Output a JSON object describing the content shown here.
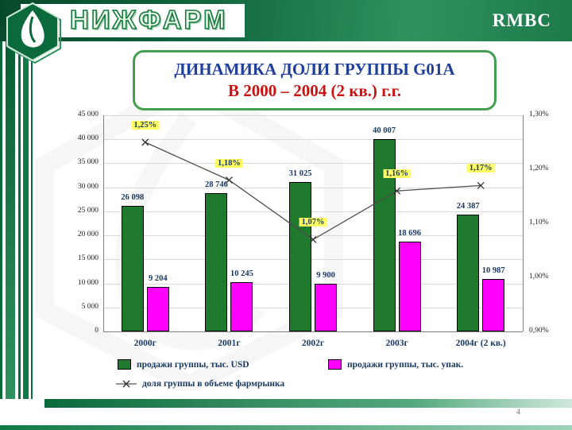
{
  "header": {
    "brand": "НИЖФАРМ",
    "right_text": "RMBC",
    "band_color": "#10663c"
  },
  "title": {
    "line1": "ДИНАМИКА ДОЛИ ГРУППЫ G01A",
    "line2": "В 2000 – 2004 (2 кв.) г.г.",
    "line1_color": "#1f3f99",
    "line2_color": "#cc1111"
  },
  "chart_data": {
    "type": "combo",
    "categories": [
      "2000г",
      "2001г",
      "2002г",
      "2003г",
      "2004г (2 кв.)"
    ],
    "series": [
      {
        "name": "продажи группы, тыс. USD",
        "type": "bar",
        "color": "#1f7a2d",
        "values": [
          26098,
          28746,
          31025,
          40007,
          24387
        ],
        "labels": [
          "26 098",
          "28 746",
          "31 025",
          "40 007",
          "24 387"
        ]
      },
      {
        "name": "продажи группы, тыс. упак.",
        "type": "bar",
        "color": "#ff00ff",
        "values": [
          9204,
          10245,
          9900,
          18696,
          10987
        ],
        "labels": [
          "9 204",
          "10 245",
          "9 900",
          "18 696",
          "10 987"
        ]
      },
      {
        "name": "доля группы в объеме фармрынка",
        "type": "line",
        "color": "#4d4d4d",
        "values": [
          1.25,
          1.18,
          1.07,
          1.16,
          1.17
        ],
        "labels": [
          "1,25%",
          "1,18%",
          "1,07%",
          "1,16%",
          "1,17%"
        ],
        "label_highlight": "#ffff63"
      }
    ],
    "left_axis": {
      "min": 0,
      "max": 45000,
      "step": 5000,
      "ticks": [
        "45 000",
        "40 000",
        "35 000",
        "30 000",
        "25 000",
        "20 000",
        "15 000",
        "10 000",
        "5 000",
        "0"
      ]
    },
    "right_axis": {
      "min": 0.9,
      "max": 1.3,
      "step": 0.1,
      "ticks": [
        "1,30%",
        "1,20%",
        "1,10%",
        "1,00%",
        "0,90%"
      ]
    },
    "grid": true,
    "legend_position": "bottom"
  },
  "footer": {
    "page_number": "4"
  }
}
